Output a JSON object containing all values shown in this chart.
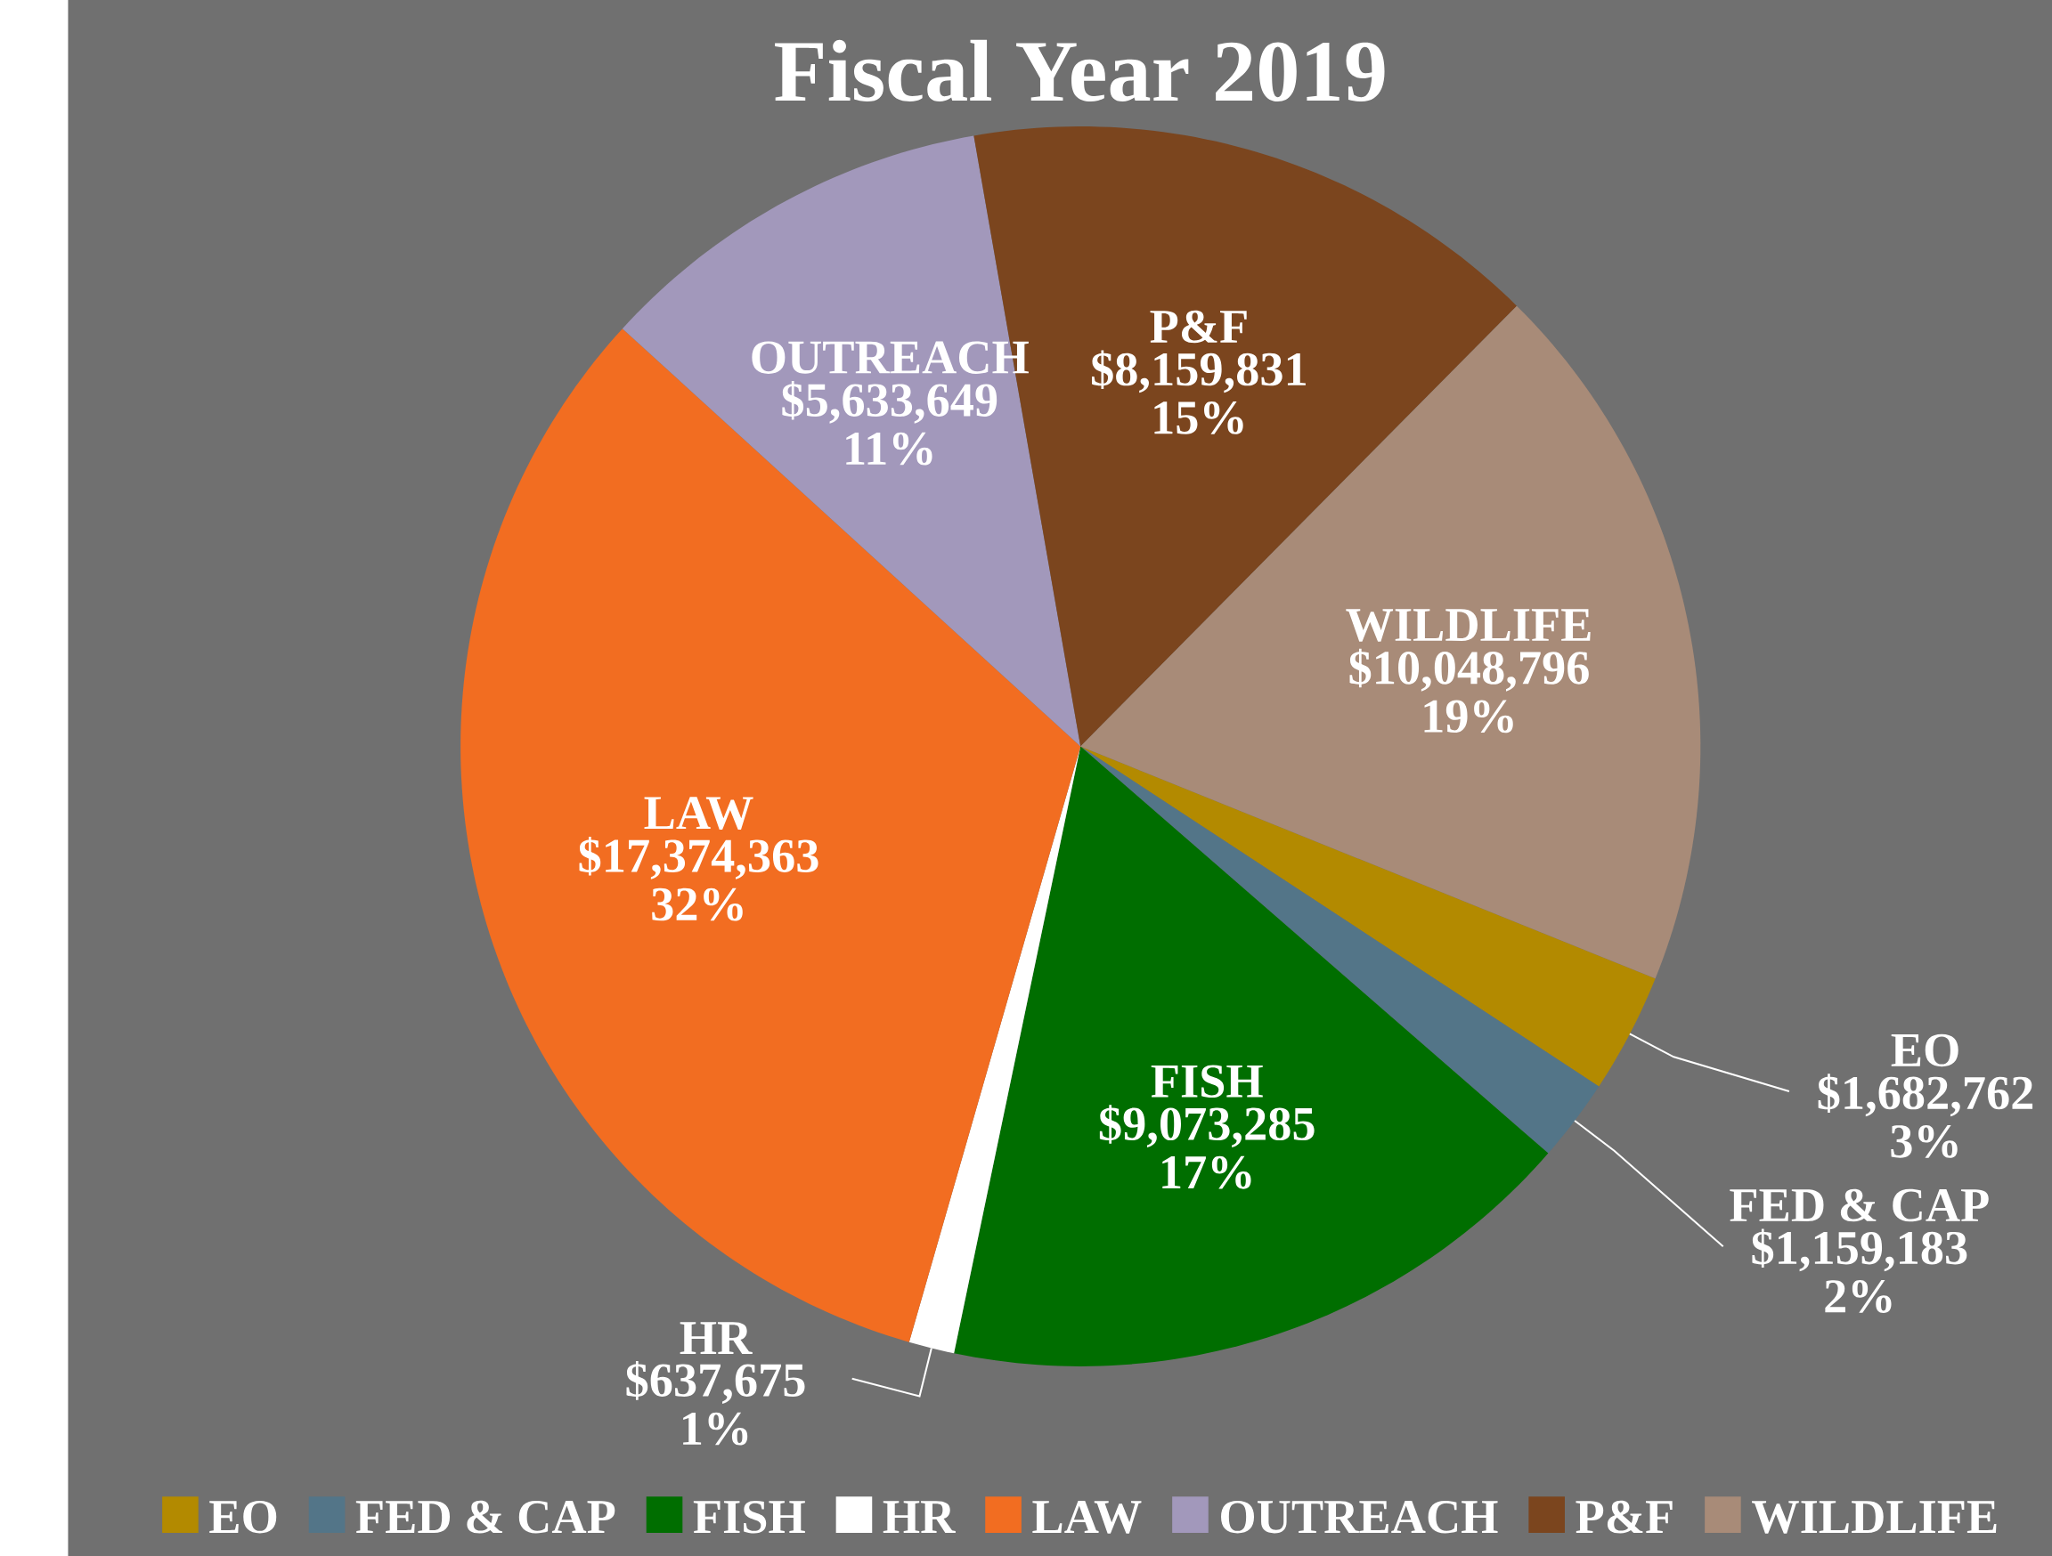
{
  "chart_data": {
    "type": "pie",
    "title": "Fiscal Year 2019",
    "categories": [
      "EO",
      "FED & CAP",
      "FISH",
      "HR",
      "LAW",
      "OUTREACH",
      "P&F",
      "WILDLIFE"
    ],
    "values": [
      1682762,
      1159183,
      9073285,
      637675,
      17374363,
      5633649,
      8159831,
      10048796
    ],
    "colors": [
      "#b38a00",
      "#537588",
      "#006e00",
      "#ffffff",
      "#f26d21",
      "#a298bb",
      "#7b451e",
      "#a88b78"
    ],
    "value_labels": [
      "$1,682,762 3%",
      "$1,159,183 2%",
      "$9,073,285 17%",
      "$637,675 1%",
      "$17,374,363 32%",
      "$5,633,649 11%",
      "$8,159,831 15%",
      "$10,048,796 19%"
    ],
    "legend": "bottom"
  }
}
